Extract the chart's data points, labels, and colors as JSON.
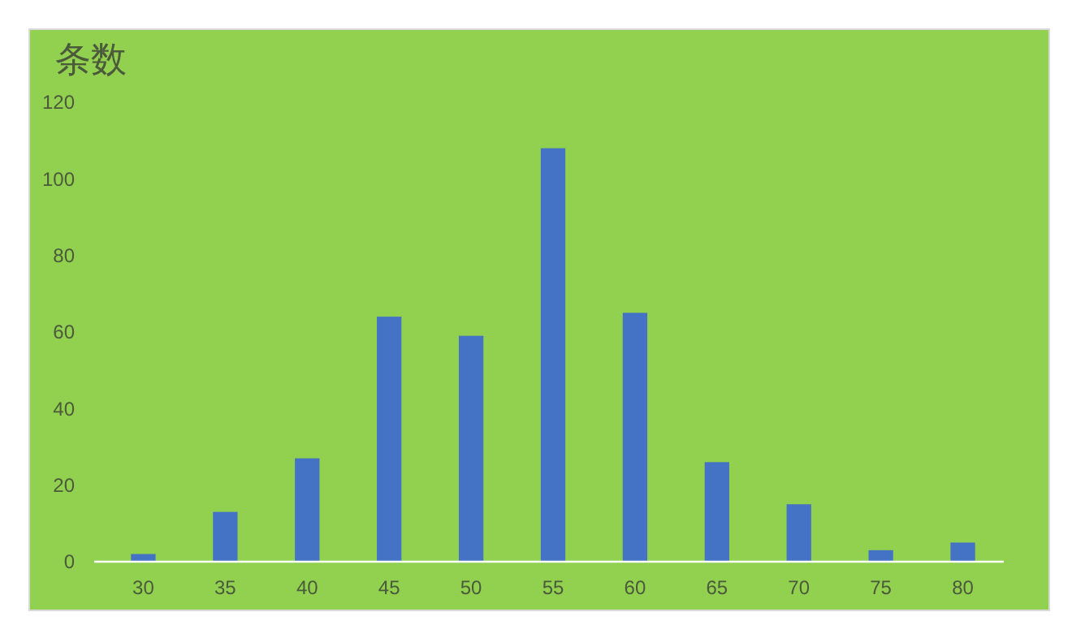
{
  "chart_data": {
    "type": "bar",
    "title": "条数",
    "categories": [
      "30",
      "35",
      "40",
      "45",
      "50",
      "55",
      "60",
      "65",
      "70",
      "75",
      "80"
    ],
    "values": [
      2,
      13,
      27,
      64,
      59,
      108,
      65,
      26,
      15,
      3,
      5
    ],
    "color": "#4472c4",
    "ylim": [
      0,
      120
    ],
    "yticks": [
      0,
      20,
      40,
      60,
      80,
      100,
      120
    ],
    "grid": false
  }
}
